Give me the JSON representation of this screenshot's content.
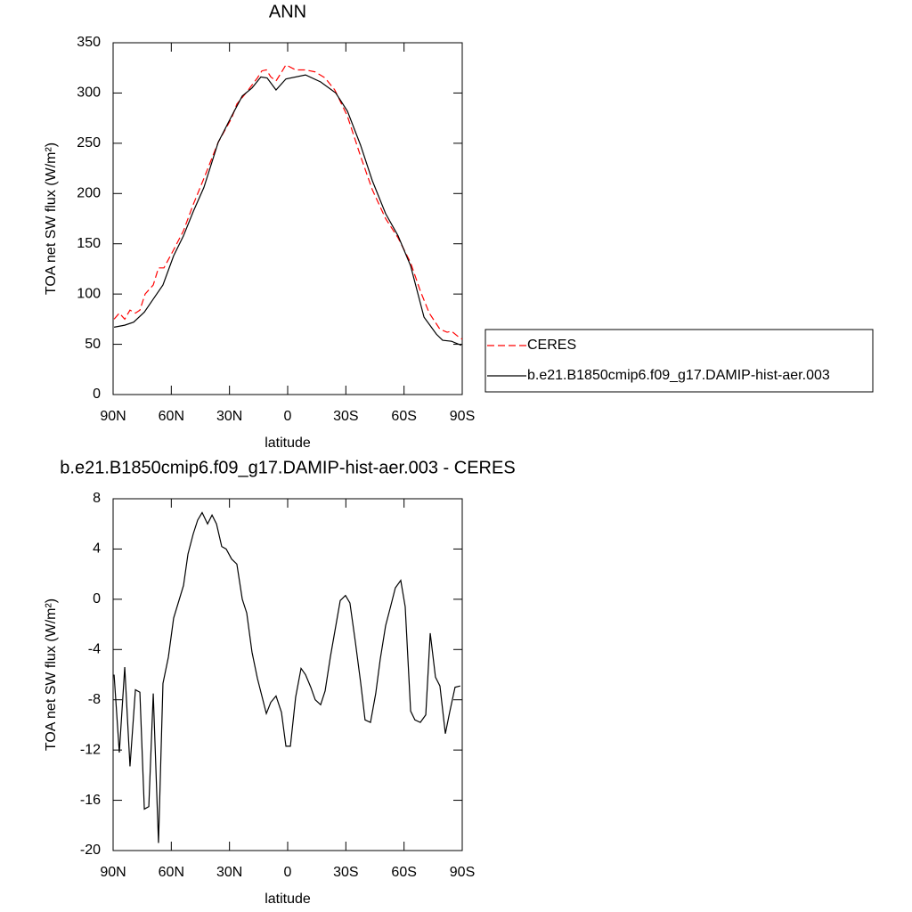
{
  "chart_data": [
    {
      "type": "line",
      "title": "ANN",
      "xlabel": "latitude",
      "ylabel": "TOA net SW flux (W/m²)",
      "xlim": [
        90,
        -90
      ],
      "xticks": [
        {
          "value": 90,
          "label": "90N"
        },
        {
          "value": 60,
          "label": "60N"
        },
        {
          "value": 30,
          "label": "30N"
        },
        0,
        {
          "value": -30,
          "label": "30S"
        },
        {
          "value": -60,
          "label": "60S"
        },
        {
          "value": -90,
          "label": "90S"
        }
      ],
      "ylim": [
        0,
        350
      ],
      "yticks": [
        0,
        50,
        100,
        150,
        200,
        250,
        300,
        350
      ],
      "legend": "right-outside",
      "series": [
        {
          "name": "CERES",
          "color": "#ff0000",
          "line_style": "dashed",
          "x": [
            89.5,
            86.8,
            84,
            81.3,
            78.5,
            76.2,
            73.5,
            69.3,
            66.6,
            63.8,
            58.8,
            53.7,
            48.7,
            43.2,
            35.8,
            28.9,
            26.2,
            21.1,
            15.6,
            13.3,
            11.0,
            8.7,
            6.0,
            3.7,
            0.9,
            -4.1,
            -9.2,
            -14.2,
            -19.3,
            -24.3,
            -30.8,
            -37.6,
            -43.6,
            -50.5,
            -56.9,
            -63.4,
            -68.4,
            -73.0,
            -78.5,
            -82.2,
            -84.5,
            -87.7,
            -90
          ],
          "values": [
            75,
            81,
            75,
            84,
            81,
            84,
            100,
            109,
            126,
            126,
            144,
            163,
            189,
            215,
            251,
            275,
            289,
            301,
            315,
            322,
            323,
            316,
            312,
            319,
            328,
            323,
            323,
            321,
            315,
            303,
            277,
            237,
            204,
            175,
            156,
            131,
            103,
            81,
            65,
            62,
            63,
            58,
            55
          ]
        },
        {
          "name": "b.e21.B1850cmip6.f09_g17.DAMIP-hist-aer.003",
          "color": "#000000",
          "line_style": "solid",
          "x": [
            89.5,
            84,
            79.4,
            73.9,
            69.3,
            64.3,
            58.8,
            53.7,
            48.7,
            43.2,
            35.8,
            28.9,
            23.4,
            18.4,
            13.8,
            10.6,
            6.0,
            0.9,
            -9.2,
            -17.0,
            -24.8,
            -30.8,
            -37.6,
            -43.6,
            -50.5,
            -56.9,
            -63.4,
            -70.3,
            -76.7,
            -79.9,
            -84.5,
            -89.5
          ],
          "values": [
            67,
            69,
            72,
            82,
            95,
            109,
            138,
            158,
            182,
            206,
            251,
            277,
            297,
            305,
            316,
            315,
            303,
            314,
            318,
            311,
            300,
            282,
            248,
            213,
            180,
            158,
            128,
            77,
            60,
            54,
            53,
            49
          ]
        }
      ]
    },
    {
      "type": "line",
      "title": "b.e21.B1850cmip6.f09_g17.DAMIP-hist-aer.003 - CERES",
      "xlabel": "latitude",
      "ylabel": "TOA net SW flux (W/m²)",
      "xlim": [
        90,
        -90
      ],
      "xticks": [
        {
          "value": 90,
          "label": "90N"
        },
        {
          "value": 60,
          "label": "60N"
        },
        {
          "value": 30,
          "label": "30N"
        },
        0,
        {
          "value": -30,
          "label": "30S"
        },
        {
          "value": -60,
          "label": "60S"
        },
        {
          "value": -90,
          "label": "90S"
        }
      ],
      "ylim": [
        -20,
        8
      ],
      "yticks": [
        -20,
        -16,
        -12,
        -8,
        -4,
        0,
        4,
        8
      ],
      "series": [
        {
          "color": "#000000",
          "line_style": "solid",
          "x": [
            89.5,
            86.8,
            84.0,
            81.3,
            78.5,
            76.2,
            73.9,
            71.6,
            69.3,
            66.6,
            64.3,
            61.5,
            58.8,
            53.7,
            51.4,
            48.7,
            46.4,
            44.1,
            41.3,
            39.0,
            36.7,
            34.0,
            31.7,
            28.9,
            26.2,
            23.4,
            21.1,
            18.4,
            15.6,
            11.0,
            8.7,
            6.0,
            3.2,
            0.9,
            -1.4,
            -4.1,
            -6.9,
            -9.2,
            -11.9,
            -14.2,
            -17.0,
            -19.3,
            -22.0,
            -27.1,
            -29.8,
            -32.1,
            -34.9,
            -37.6,
            -39.9,
            -42.7,
            -45.4,
            -47.7,
            -50.5,
            -53.2,
            -55.5,
            -58.3,
            -60.6,
            -63.4,
            -65.6,
            -68.4,
            -71.2,
            -73.5,
            -76.2,
            -78.5,
            -81.3,
            -83.5,
            -86.3,
            -89.0
          ],
          "values": [
            -6.0,
            -12.2,
            -5.4,
            -13.3,
            -7.2,
            -7.4,
            -16.7,
            -16.5,
            -7.5,
            -19.4,
            -6.7,
            -4.6,
            -1.5,
            1.1,
            3.6,
            5.2,
            6.3,
            6.9,
            6.0,
            6.7,
            6.0,
            4.2,
            4.0,
            3.2,
            2.8,
            0.0,
            -1.1,
            -4.2,
            -6.3,
            -9.1,
            -8.2,
            -7.7,
            -9.0,
            -11.7,
            -11.7,
            -7.8,
            -5.5,
            -6.0,
            -7.0,
            -8.0,
            -8.4,
            -7.3,
            -4.6,
            -0.1,
            0.3,
            -0.3,
            -3.4,
            -6.6,
            -9.6,
            -9.8,
            -7.5,
            -4.8,
            -2.1,
            -0.5,
            0.9,
            1.5,
            -0.6,
            -8.9,
            -9.6,
            -9.8,
            -9.2,
            -2.7,
            -6.2,
            -6.9,
            -10.7,
            -9.0,
            -7.0,
            -6.9
          ]
        }
      ]
    }
  ]
}
